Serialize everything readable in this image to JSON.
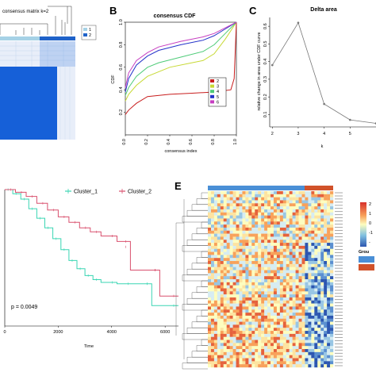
{
  "panels": {
    "a": {
      "title": "consensus matrix k=2",
      "legend": [
        "1",
        "2"
      ],
      "colors": {
        "cluster1": "#a6d2e6",
        "cluster2": "#1f62c9",
        "block": "#1660d8",
        "light": "#e8eef9"
      }
    },
    "b": {
      "label": "B",
      "chart_data": {
        "type": "line",
        "title": "consensus CDF",
        "xlabel": "consensus index",
        "ylabel": "CDF",
        "xlim": [
          0,
          1
        ],
        "ylim": [
          0,
          1
        ],
        "xticks": [
          "0.0",
          "0.2",
          "0.4",
          "0.6",
          "0.8",
          "1.0"
        ],
        "yticks": [
          "0.2",
          "0.4",
          "0.6",
          "0.8",
          "1.0"
        ],
        "legend_position": "bottom-right",
        "series": [
          {
            "name": "2",
            "color": "#c81e1e",
            "x": [
              0,
              0.03,
              0.1,
              0.2,
              0.4,
              0.6,
              0.8,
              0.95,
              0.98,
              1.0
            ],
            "y": [
              0.18,
              0.22,
              0.28,
              0.34,
              0.36,
              0.37,
              0.38,
              0.4,
              0.5,
              1.0
            ]
          },
          {
            "name": "3",
            "color": "#c7d934",
            "x": [
              0,
              0.03,
              0.1,
              0.2,
              0.4,
              0.6,
              0.7,
              0.8,
              0.9,
              1.0
            ],
            "y": [
              0.3,
              0.36,
              0.44,
              0.52,
              0.6,
              0.64,
              0.66,
              0.72,
              0.85,
              1.0
            ]
          },
          {
            "name": "4",
            "color": "#4ecb78",
            "x": [
              0,
              0.03,
              0.1,
              0.2,
              0.3,
              0.5,
              0.7,
              0.8,
              0.9,
              1.0
            ],
            "y": [
              0.35,
              0.42,
              0.52,
              0.6,
              0.64,
              0.69,
              0.74,
              0.8,
              0.9,
              1.0
            ]
          },
          {
            "name": "5",
            "color": "#2332c9",
            "x": [
              0,
              0.03,
              0.1,
              0.2,
              0.3,
              0.5,
              0.7,
              0.8,
              0.9,
              1.0
            ],
            "y": [
              0.38,
              0.5,
              0.62,
              0.7,
              0.75,
              0.8,
              0.84,
              0.88,
              0.94,
              1.0
            ]
          },
          {
            "name": "6",
            "color": "#c63ec0",
            "x": [
              0,
              0.03,
              0.1,
              0.2,
              0.3,
              0.5,
              0.7,
              0.8,
              0.9,
              1.0
            ],
            "y": [
              0.42,
              0.55,
              0.66,
              0.73,
              0.78,
              0.83,
              0.87,
              0.9,
              0.95,
              1.0
            ]
          }
        ]
      }
    },
    "c": {
      "label": "C",
      "chart_data": {
        "type": "line",
        "title": "Delta area",
        "xlabel": "k",
        "ylabel": "relative change in area under CDF curve",
        "x": [
          2,
          3,
          4,
          5,
          6
        ],
        "y": [
          0.38,
          0.62,
          0.16,
          0.07,
          0.05
        ],
        "xlim": [
          1.9,
          6
        ],
        "ylim": [
          0.03,
          0.65
        ],
        "xticks": [
          "2",
          "3",
          "4",
          "5"
        ],
        "yticks": [
          "0.1",
          "0.2",
          "0.3",
          "0.4",
          "0.5",
          "0.6"
        ]
      }
    },
    "d": {
      "chart_data": {
        "type": "line",
        "xlabel": "Time",
        "xlim": [
          0,
          6500
        ],
        "ylim": [
          0,
          1
        ],
        "xticks": [
          "0",
          "2000",
          "4000",
          "6000"
        ],
        "annotation": "p = 0.0049",
        "series": [
          {
            "name": "Cluster_1",
            "color": "#3ad6b3",
            "x": [
              0,
              300,
              600,
              900,
              1200,
              1500,
              1800,
              2100,
              2400,
              2700,
              3000,
              3300,
              3600,
              4200,
              4800,
              5500,
              5500,
              6500
            ],
            "y": [
              1.0,
              0.97,
              0.93,
              0.86,
              0.79,
              0.72,
              0.64,
              0.56,
              0.48,
              0.42,
              0.37,
              0.34,
              0.32,
              0.31,
              0.31,
              0.31,
              0.15,
              0.15
            ]
          },
          {
            "name": "Cluster_2",
            "color": "#d9506e",
            "x": [
              0,
              400,
              800,
              1200,
              1600,
              2000,
              2400,
              2800,
              3200,
              3600,
              4200,
              4700,
              4700,
              5800,
              5800,
              6500
            ],
            "y": [
              1.0,
              0.98,
              0.95,
              0.9,
              0.85,
              0.8,
              0.76,
              0.72,
              0.69,
              0.66,
              0.62,
              0.58,
              0.41,
              0.41,
              0.22,
              0.22
            ]
          }
        ]
      }
    },
    "e": {
      "label": "E",
      "legend_title": "Grou",
      "colorbar_labels": [
        "2",
        "1",
        "0",
        "-1",
        "-"
      ],
      "group_colors": {
        "a": "#4a8fd6",
        "b": "#d1522a"
      }
    }
  }
}
